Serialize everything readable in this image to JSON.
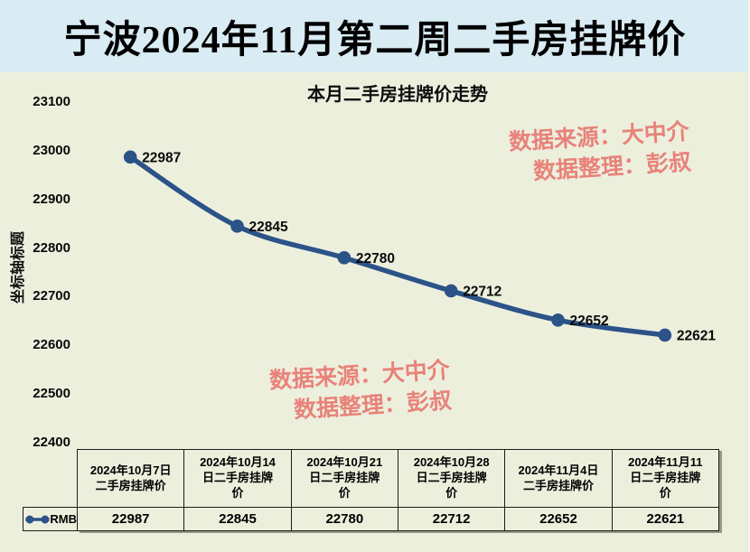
{
  "page_title": "宁波2024年11月第二周二手房挂牌价",
  "watermark": {
    "line1": "数据来源：大中介",
    "line2": "数据整理：彭叔"
  },
  "chart_data": {
    "type": "line",
    "title": "本月二手房挂牌价走势",
    "y_axis_title": "坐标轴标题",
    "categories": [
      "2024年10月7日二手房挂牌价",
      "2024年10月14日二手房挂牌价",
      "2024年10月21日二手房挂牌价",
      "2024年10月28日二手房挂牌价",
      "2024年11月4日二手房挂牌价",
      "2024年11月11日二手房挂牌价"
    ],
    "series": [
      {
        "name": "RMB",
        "values": [
          22987,
          22845,
          22780,
          22712,
          22652,
          22621
        ]
      }
    ],
    "ylim": [
      22400,
      23100
    ],
    "yticks": [
      23100,
      23000,
      22900,
      22800,
      22700,
      22600,
      22500,
      22400
    ],
    "grid": false,
    "legend_position": "bottom-left",
    "data_labels": true
  },
  "table": {
    "legend_label": "RMB",
    "header_lines": [
      "2024年10月7日\n二手房挂牌价",
      "2024年10月14\n日二手房挂牌\n价",
      "2024年10月21\n日二手房挂牌\n价",
      "2024年10月28\n日二手房挂牌\n价",
      "2024年11月4日\n二手房挂牌价",
      "2024年11月11\n日二手房挂牌\n价"
    ],
    "values": [
      "22987",
      "22845",
      "22780",
      "22712",
      "22652",
      "22621"
    ]
  },
  "colors": {
    "page_bg": "#edefdd",
    "title_band_bg": "#d9ebf3",
    "line": "#2b5388",
    "watermark": "#e8827a",
    "table_border": "#1c1c1c"
  }
}
